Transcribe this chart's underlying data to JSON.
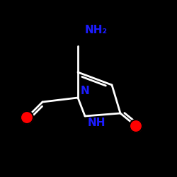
{
  "bg_color": "#000000",
  "bond_color": "#ffffff",
  "N_color": "#1c1cff",
  "O_color": "#ff0000",
  "lw": 2.0,
  "NH2_text": "NH₂",
  "N_label": "N",
  "NH_label": "NH"
}
